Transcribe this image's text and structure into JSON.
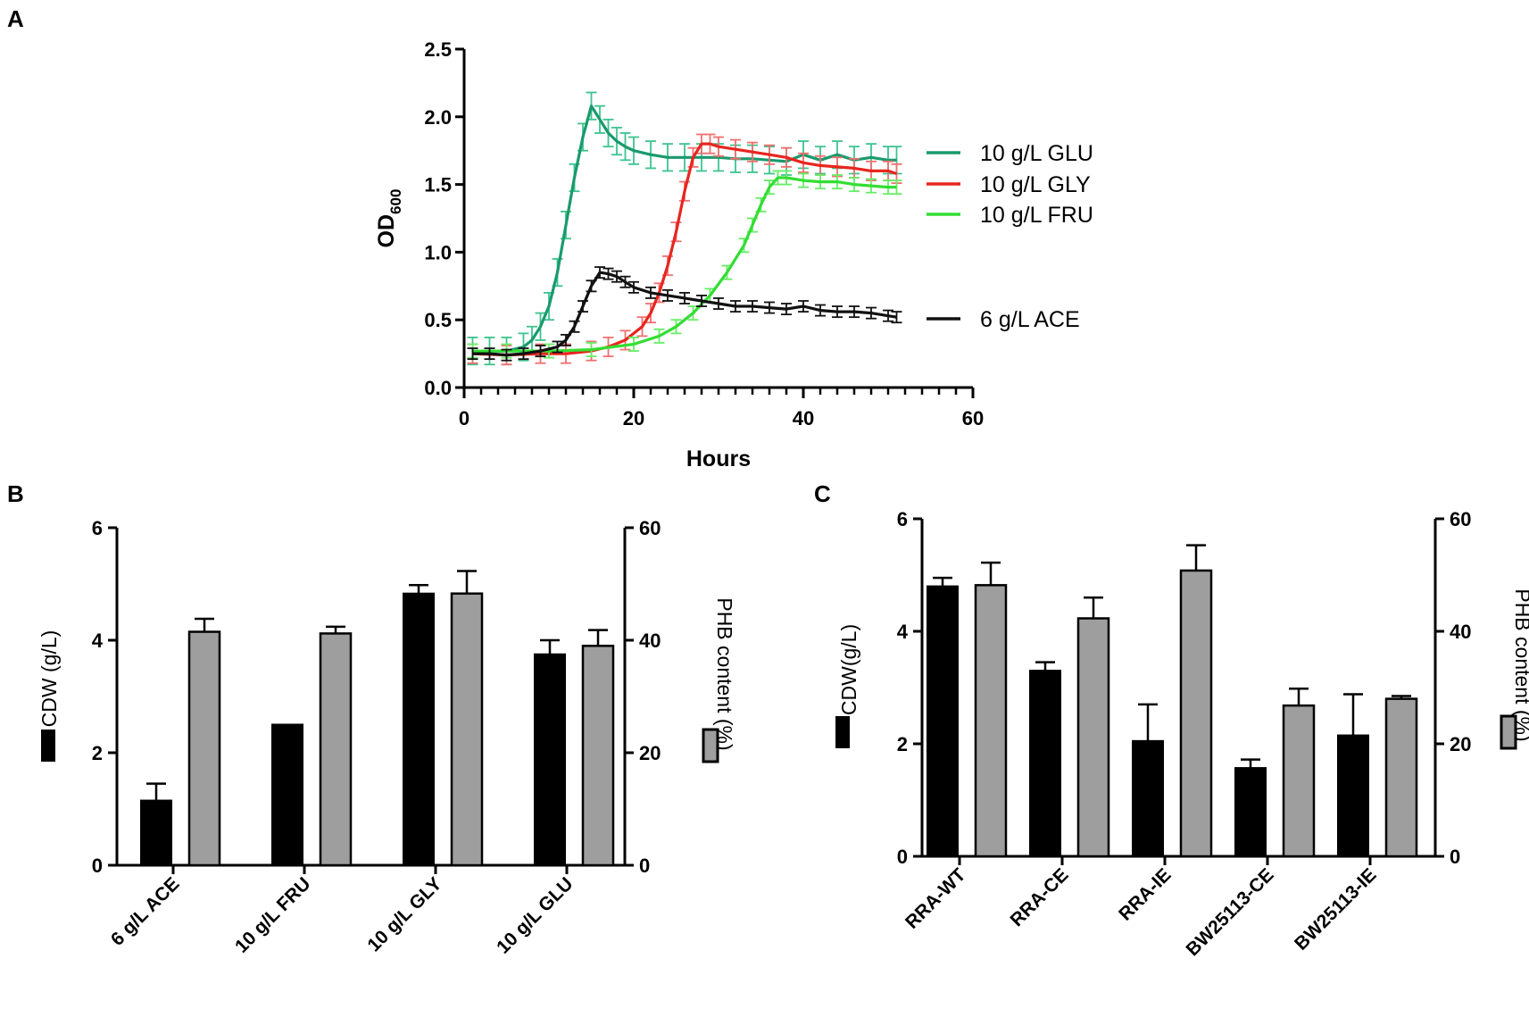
{
  "chart_data": [
    {
      "panel": "A",
      "type": "line",
      "xlabel": "Hours",
      "ylabel_main": "OD",
      "ylabel_sub": "600",
      "xlim": [
        0,
        60
      ],
      "ylim": [
        0,
        2.5
      ],
      "xticks": [
        "0",
        "20",
        "40",
        "60"
      ],
      "yticks": [
        "0.0",
        "0.5",
        "1.0",
        "1.5",
        "2.0",
        "2.5"
      ],
      "series": [
        {
          "name": "10 g/L GLU",
          "color": "#1a9a6c",
          "errcolor": "#3cc48e",
          "points": [
            [
              1,
              0.27
            ],
            [
              3,
              0.27
            ],
            [
              5,
              0.27
            ],
            [
              7,
              0.3
            ],
            [
              8,
              0.35
            ],
            [
              9,
              0.45
            ],
            [
              10,
              0.6
            ],
            [
              11,
              0.85
            ],
            [
              12,
              1.2
            ],
            [
              13,
              1.55
            ],
            [
              14,
              1.85
            ],
            [
              15,
              2.08
            ],
            [
              16,
              1.98
            ],
            [
              17,
              1.88
            ],
            [
              18,
              1.82
            ],
            [
              19,
              1.78
            ],
            [
              20,
              1.75
            ],
            [
              22,
              1.72
            ],
            [
              24,
              1.7
            ],
            [
              26,
              1.7
            ],
            [
              28,
              1.7
            ],
            [
              30,
              1.7
            ],
            [
              32,
              1.69
            ],
            [
              34,
              1.69
            ],
            [
              36,
              1.68
            ],
            [
              38,
              1.67
            ],
            [
              40,
              1.72
            ],
            [
              42,
              1.68
            ],
            [
              44,
              1.72
            ],
            [
              46,
              1.68
            ],
            [
              48,
              1.7
            ],
            [
              50,
              1.68
            ],
            [
              51,
              1.68
            ]
          ],
          "err": 0.1
        },
        {
          "name": "10 g/L GLY",
          "color": "#e8251f",
          "errcolor": "#f07070",
          "points": [
            [
              1,
              0.25
            ],
            [
              5,
              0.24
            ],
            [
              9,
              0.25
            ],
            [
              12,
              0.25
            ],
            [
              15,
              0.27
            ],
            [
              17,
              0.3
            ],
            [
              19,
              0.35
            ],
            [
              21,
              0.45
            ],
            [
              22,
              0.55
            ],
            [
              23,
              0.7
            ],
            [
              24,
              0.9
            ],
            [
              25,
              1.15
            ],
            [
              26,
              1.45
            ],
            [
              27,
              1.7
            ],
            [
              28,
              1.8
            ],
            [
              29,
              1.8
            ],
            [
              30,
              1.78
            ],
            [
              32,
              1.76
            ],
            [
              34,
              1.74
            ],
            [
              36,
              1.72
            ],
            [
              38,
              1.7
            ],
            [
              40,
              1.66
            ],
            [
              42,
              1.64
            ],
            [
              44,
              1.63
            ],
            [
              46,
              1.62
            ],
            [
              48,
              1.6
            ],
            [
              50,
              1.6
            ],
            [
              51,
              1.58
            ]
          ],
          "err": 0.07
        },
        {
          "name": "10 g/L FRU",
          "color": "#33dd33",
          "errcolor": "#66ee66",
          "points": [
            [
              1,
              0.27
            ],
            [
              5,
              0.27
            ],
            [
              10,
              0.27
            ],
            [
              15,
              0.28
            ],
            [
              20,
              0.32
            ],
            [
              23,
              0.38
            ],
            [
              25,
              0.45
            ],
            [
              27,
              0.55
            ],
            [
              29,
              0.68
            ],
            [
              31,
              0.85
            ],
            [
              33,
              1.05
            ],
            [
              34,
              1.2
            ],
            [
              35,
              1.35
            ],
            [
              36,
              1.48
            ],
            [
              37,
              1.55
            ],
            [
              38,
              1.55
            ],
            [
              40,
              1.53
            ],
            [
              42,
              1.52
            ],
            [
              44,
              1.52
            ],
            [
              46,
              1.5
            ],
            [
              48,
              1.49
            ],
            [
              50,
              1.48
            ],
            [
              51,
              1.48
            ]
          ],
          "err": 0.05
        },
        {
          "name": "6 g/L ACE",
          "color": "#111111",
          "errcolor": "#111111",
          "points": [
            [
              1,
              0.25
            ],
            [
              3,
              0.25
            ],
            [
              5,
              0.24
            ],
            [
              7,
              0.25
            ],
            [
              9,
              0.27
            ],
            [
              11,
              0.3
            ],
            [
              12,
              0.35
            ],
            [
              13,
              0.45
            ],
            [
              14,
              0.6
            ],
            [
              15,
              0.75
            ],
            [
              16,
              0.85
            ],
            [
              17,
              0.84
            ],
            [
              18,
              0.82
            ],
            [
              19,
              0.78
            ],
            [
              20,
              0.74
            ],
            [
              22,
              0.7
            ],
            [
              24,
              0.68
            ],
            [
              26,
              0.66
            ],
            [
              28,
              0.64
            ],
            [
              30,
              0.62
            ],
            [
              32,
              0.6
            ],
            [
              34,
              0.6
            ],
            [
              36,
              0.59
            ],
            [
              38,
              0.58
            ],
            [
              40,
              0.6
            ],
            [
              42,
              0.57
            ],
            [
              44,
              0.56
            ],
            [
              46,
              0.56
            ],
            [
              48,
              0.55
            ],
            [
              50,
              0.53
            ],
            [
              51,
              0.52
            ]
          ],
          "err": 0.04
        }
      ]
    },
    {
      "panel": "B",
      "type": "bar",
      "categories": [
        "6 g/L ACE",
        "10 g/L FRU",
        "10 g/L GLY",
        "10 g/L GLU"
      ],
      "ylabel_left": "CDW (g/L)",
      "ylabel_right": "PHB content (%)",
      "ylim_left": [
        0,
        6
      ],
      "ylim_right": [
        0,
        60
      ],
      "yticks_left": [
        "0",
        "2",
        "4",
        "6"
      ],
      "yticks_right": [
        "0",
        "20",
        "40",
        "60"
      ],
      "series": [
        {
          "name": "CDW",
          "axis": "left",
          "color": "#000000",
          "values": [
            1.15,
            2.5,
            4.83,
            3.75
          ],
          "err": [
            0.3,
            0,
            0.15,
            0.25
          ]
        },
        {
          "name": "PHB content",
          "axis": "right",
          "color": "#9e9e9e",
          "values": [
            41.5,
            41.2,
            48.3,
            39
          ],
          "err": [
            2.3,
            1.2,
            4,
            2.8
          ]
        }
      ]
    },
    {
      "panel": "C",
      "type": "bar",
      "categories": [
        "RRA-WT",
        "RRA-CE",
        "RRA-IE",
        "BW25113-CE",
        "BW25113-IE"
      ],
      "ylabel_left": "CDW(g/L)",
      "ylabel_right": "PHB content (%)",
      "ylim_left": [
        0,
        6
      ],
      "ylim_right": [
        0,
        60
      ],
      "yticks_left": [
        "0",
        "2",
        "4",
        "6"
      ],
      "yticks_right": [
        "0",
        "20",
        "40",
        "60"
      ],
      "series": [
        {
          "name": "CDW",
          "axis": "left",
          "color": "#000000",
          "values": [
            4.8,
            3.3,
            2.05,
            1.57,
            2.15
          ],
          "err": [
            0.15,
            0.15,
            0.65,
            0.15,
            0.73
          ]
        },
        {
          "name": "PHB content",
          "axis": "right",
          "color": "#9e9e9e",
          "values": [
            48.2,
            42.3,
            50.8,
            26.8,
            28
          ],
          "err": [
            4,
            3.7,
            4.5,
            3,
            0.5
          ]
        }
      ]
    }
  ],
  "panels": {
    "a": "A",
    "b": "B",
    "c": "C"
  }
}
